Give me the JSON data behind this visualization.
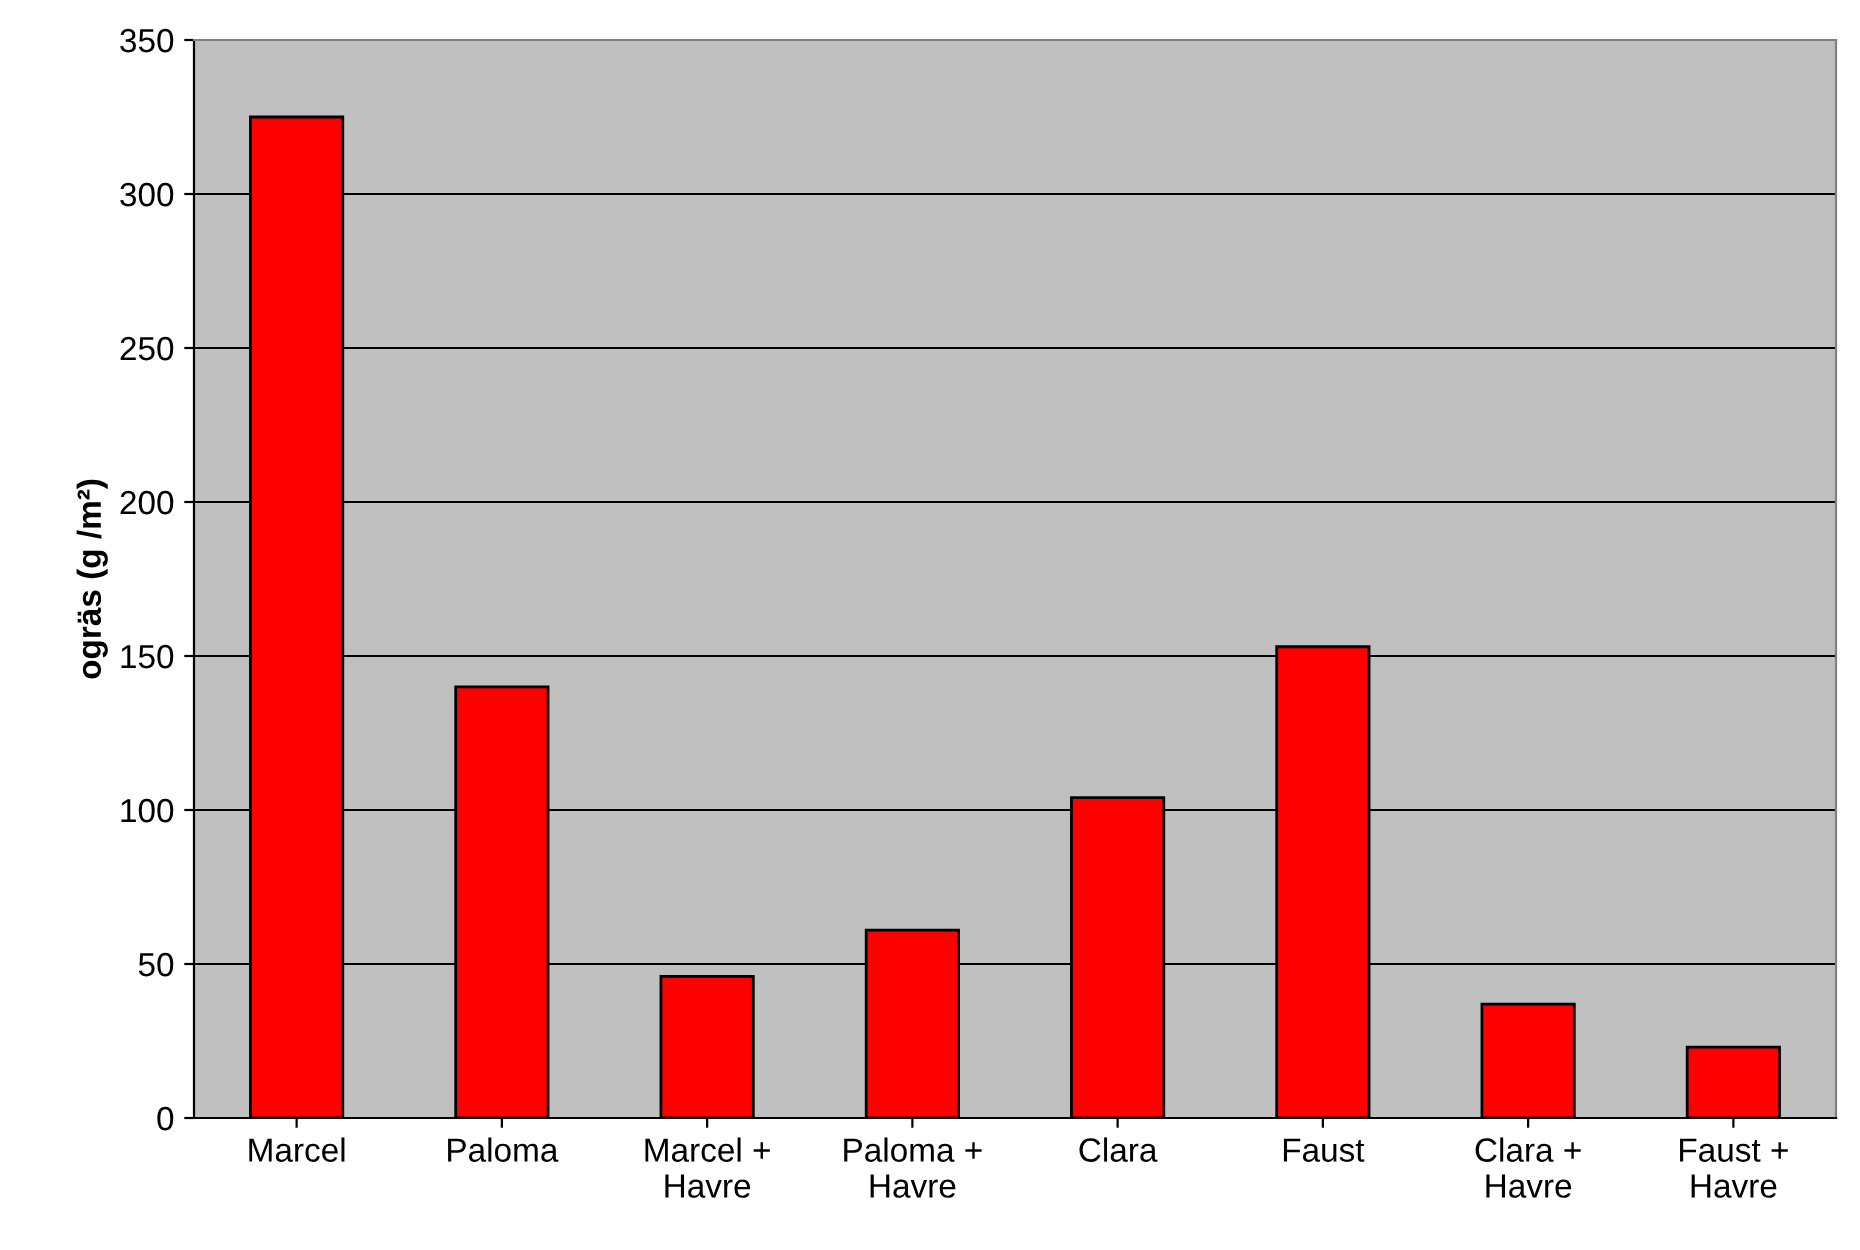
{
  "chart_data": {
    "type": "bar",
    "ylabel": "ogräs (g /m²)",
    "categories": [
      "Marcel",
      "Paloma",
      "Marcel +\nHavre",
      "Paloma +\nHavre",
      "Clara",
      "Faust",
      "Clara +\nHavre",
      "Faust +\nHavre"
    ],
    "values": [
      325,
      140,
      46,
      61,
      104,
      153,
      37,
      23
    ],
    "color": "#ff0000",
    "ylim": [
      0,
      350
    ],
    "yticks": [
      0,
      50,
      100,
      150,
      200,
      250,
      300,
      350
    ],
    "grid": "y",
    "legend": false
  }
}
